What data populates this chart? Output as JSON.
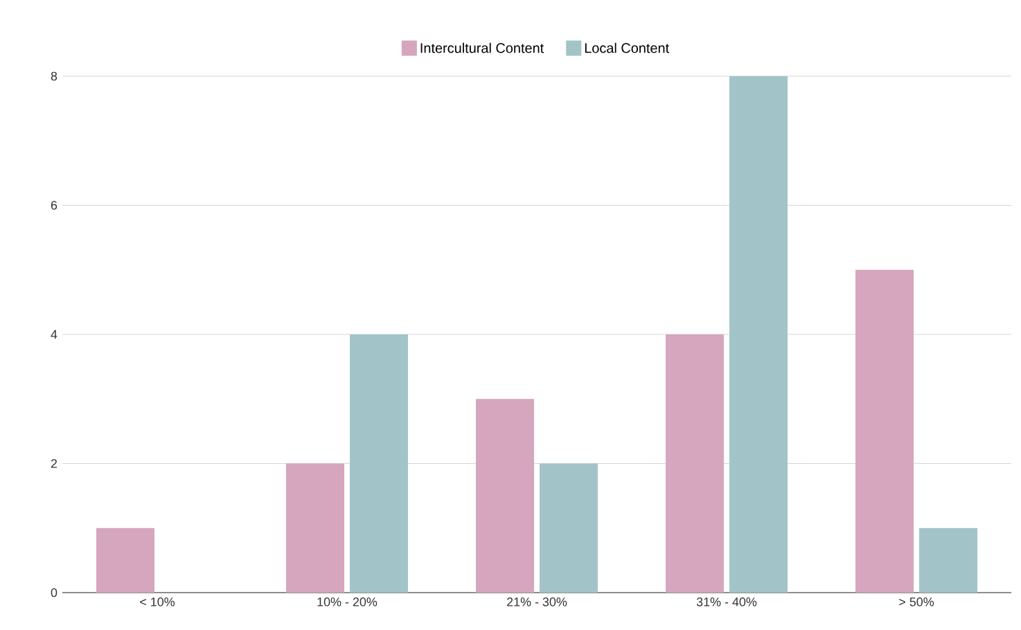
{
  "chart_data": {
    "type": "bar",
    "categories": [
      "< 10%",
      "10% - 20%",
      "21% - 30%",
      "31% - 40%",
      "> 50%"
    ],
    "series": [
      {
        "name": "Intercultural Content",
        "color": "#d5a6bd",
        "values": [
          1,
          2,
          3,
          4,
          5
        ]
      },
      {
        "name": "Local Content",
        "color": "#a2c4c9",
        "values": [
          0,
          4,
          2,
          8,
          1
        ]
      }
    ],
    "ylim": [
      0,
      8
    ],
    "yticks": [
      0,
      2,
      4,
      6,
      8
    ],
    "grid": "y",
    "legend": "top"
  }
}
